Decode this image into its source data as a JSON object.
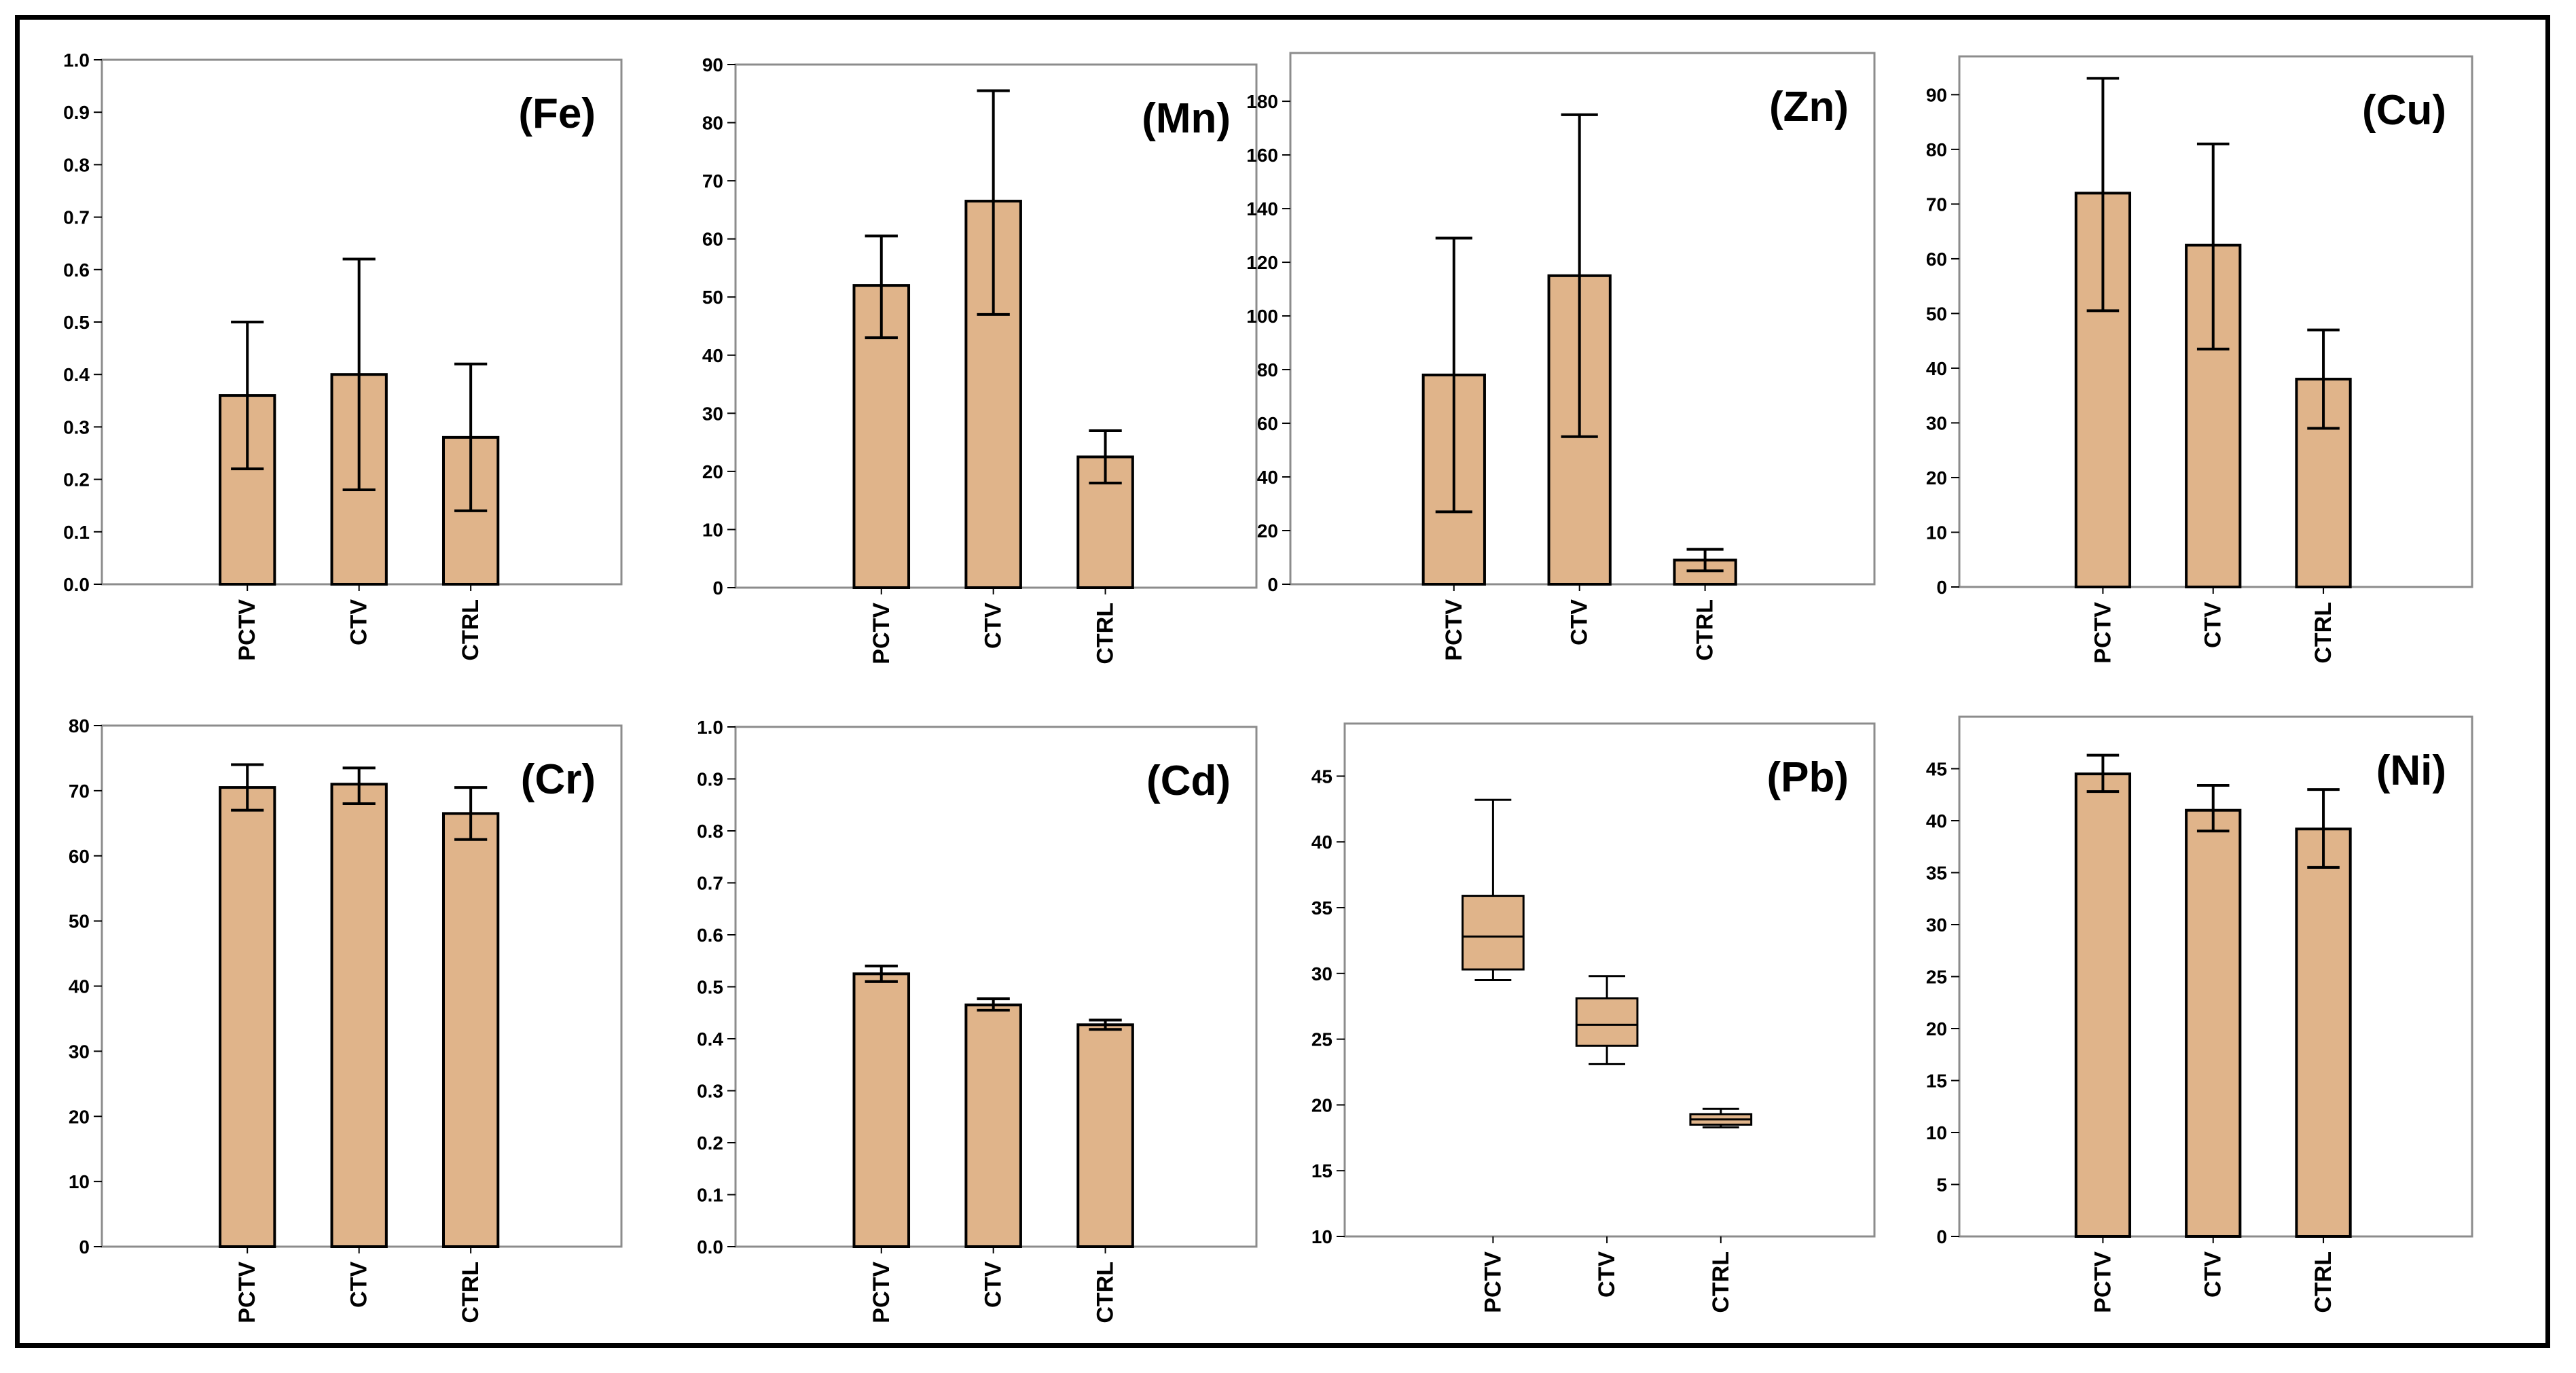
{
  "figure": {
    "background": "#ffffff",
    "bar_color": "#e0b48a",
    "stroke_color": "#000000"
  },
  "chart_data": [
    {
      "type": "bar",
      "title": "(Fe)",
      "categories": [
        "PCTV",
        "CTV",
        "CTRL"
      ],
      "values": [
        0.36,
        0.4,
        0.28
      ],
      "errors": [
        [
          0.22,
          0.5
        ],
        [
          0.18,
          0.62
        ],
        [
          0.14,
          0.42
        ]
      ],
      "ylim": [
        0,
        1.0
      ],
      "yticks": [
        "0.0",
        "0.1",
        "0.2",
        "0.3",
        "0.4",
        "0.5",
        "0.6",
        "0.7",
        "0.8",
        "0.9",
        "1.0"
      ]
    },
    {
      "type": "bar",
      "title": "(Mn)",
      "categories": [
        "PCTV",
        "CTV",
        "CTRL"
      ],
      "values": [
        52,
        66.5,
        22.5
      ],
      "errors": [
        [
          43,
          60.5
        ],
        [
          47,
          85.5
        ],
        [
          18,
          27
        ]
      ],
      "ylim": [
        0,
        90
      ],
      "yticks": [
        "0",
        "10",
        "20",
        "30",
        "40",
        "50",
        "60",
        "70",
        "80",
        "90"
      ]
    },
    {
      "type": "bar",
      "title": "(Zn)",
      "categories": [
        "PCTV",
        "CTV",
        "CTRL"
      ],
      "values": [
        78,
        115,
        9
      ],
      "errors": [
        [
          27,
          129
        ],
        [
          55,
          175
        ],
        [
          5,
          13
        ]
      ],
      "ylim": [
        0,
        198
      ],
      "yticks": [
        "0",
        "20",
        "40",
        "60",
        "80",
        "100",
        "120",
        "140",
        "160",
        "180"
      ]
    },
    {
      "type": "bar",
      "title": "(Cu)",
      "categories": [
        "PCTV",
        "CTV",
        "CTRL"
      ],
      "values": [
        72,
        62.5,
        38
      ],
      "errors": [
        [
          50.5,
          93
        ],
        [
          43.5,
          81
        ],
        [
          29,
          47
        ]
      ],
      "ylim": [
        0,
        97
      ],
      "yticks": [
        "0",
        "10",
        "20",
        "30",
        "40",
        "50",
        "60",
        "70",
        "80",
        "90"
      ]
    },
    {
      "type": "bar",
      "title": "(Cr)",
      "categories": [
        "PCTV",
        "CTV",
        "CTRL"
      ],
      "values": [
        70.5,
        71,
        66.5
      ],
      "errors": [
        [
          67,
          74
        ],
        [
          68,
          73.5
        ],
        [
          62.5,
          70.5
        ]
      ],
      "ylim": [
        0,
        80
      ],
      "yticks": [
        "0",
        "10",
        "20",
        "30",
        "40",
        "50",
        "60",
        "70",
        "80"
      ]
    },
    {
      "type": "bar",
      "title": "(Cd)",
      "categories": [
        "PCTV",
        "CTV",
        "CTRL"
      ],
      "values": [
        0.525,
        0.465,
        0.427
      ],
      "errors": [
        [
          0.51,
          0.54
        ],
        [
          0.455,
          0.477
        ],
        [
          0.418,
          0.436
        ]
      ],
      "ylim": [
        0,
        1.0
      ],
      "yticks": [
        "0.0",
        "0.1",
        "0.2",
        "0.3",
        "0.4",
        "0.5",
        "0.6",
        "0.7",
        "0.8",
        "0.9",
        "1.0"
      ]
    },
    {
      "type": "box",
      "title": "(Pb)",
      "categories": [
        "PCTV",
        "CTV",
        "CTRL"
      ],
      "boxes": [
        {
          "min": 29.5,
          "q1": 30.3,
          "median": 32.8,
          "q3": 35.9,
          "max": 43.2
        },
        {
          "min": 23.1,
          "q1": 24.5,
          "median": 26.1,
          "q3": 28.1,
          "max": 29.8
        },
        {
          "min": 18.3,
          "q1": 18.5,
          "median": 18.9,
          "q3": 19.3,
          "max": 19.7
        }
      ],
      "ylim": [
        10,
        49
      ],
      "yticks": [
        "10",
        "15",
        "20",
        "25",
        "30",
        "35",
        "40",
        "45"
      ]
    },
    {
      "type": "bar",
      "title": "(Ni)",
      "categories": [
        "PCTV",
        "CTV",
        "CTRL"
      ],
      "values": [
        44.5,
        41,
        39.2
      ],
      "errors": [
        [
          42.8,
          46.3
        ],
        [
          39,
          43.4
        ],
        [
          35.5,
          43
        ]
      ],
      "ylim": [
        0,
        50
      ],
      "yticks": [
        "0",
        "5",
        "10",
        "15",
        "20",
        "25",
        "30",
        "35",
        "40",
        "45"
      ]
    }
  ]
}
